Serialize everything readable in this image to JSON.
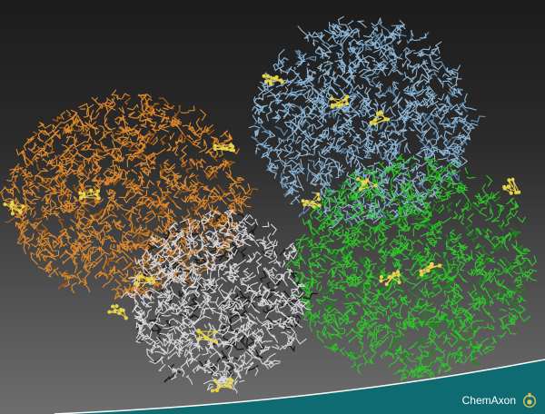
{
  "brand": {
    "name": "ChemAxon",
    "logo_icon": "flask-icon",
    "logo_color": "#d8c35a",
    "wave_color": "#0f6b72",
    "wave_edge_color": "#ffffff"
  },
  "background": {
    "top_color": "#1c1c1c",
    "bottom_color": "#6e6e6e"
  },
  "structure": {
    "chains": [
      {
        "id": "orange-chain",
        "color": "#e0892c",
        "shade": "#a25a16"
      },
      {
        "id": "blue-chain",
        "color": "#8fb7d6",
        "shade": "#5d86a6"
      },
      {
        "id": "white-chain",
        "color": "#d6d6da",
        "shade": "#1a1a1a"
      },
      {
        "id": "green-chain",
        "color": "#2fc42a",
        "shade": "#1b8a19"
      }
    ],
    "ligand_color": "#e8d44a"
  }
}
